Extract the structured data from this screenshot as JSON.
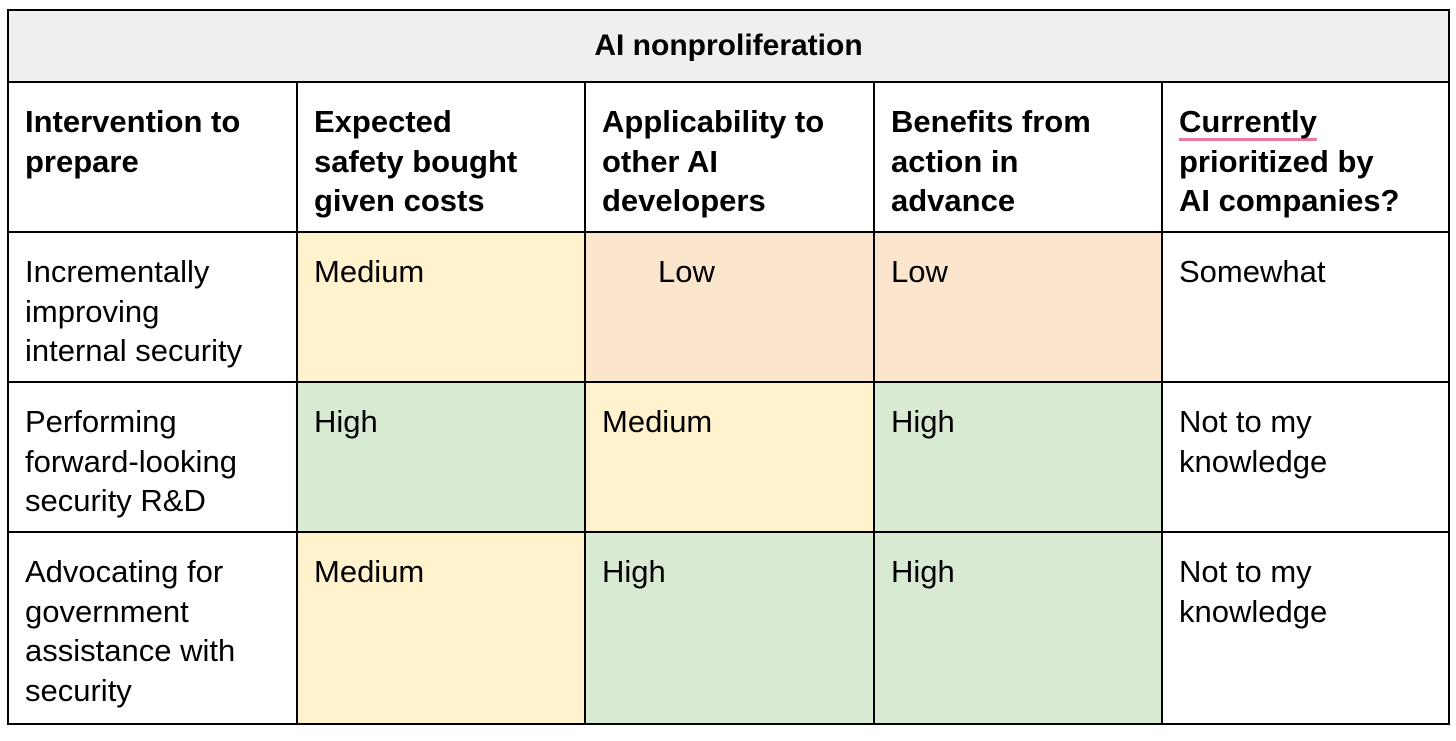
{
  "title": "AI nonproliferation",
  "columns": [
    {
      "lines": [
        "Intervention to",
        "prepare"
      ]
    },
    {
      "lines": [
        "Expected",
        "safety bought",
        "given costs"
      ]
    },
    {
      "lines": [
        "Applicability to",
        "other AI",
        "developers"
      ]
    },
    {
      "lines": [
        "Benefits from",
        "action in",
        "advance"
      ]
    },
    {
      "lines": [
        "Currently",
        "prioritized by",
        "AI companies?"
      ]
    }
  ],
  "rows": [
    {
      "intervention": [
        "Incrementally",
        "improving",
        "internal security"
      ],
      "safety": "Medium",
      "applicability": "Low",
      "benefits": "Low",
      "prioritized": [
        "Somewhat"
      ]
    },
    {
      "intervention": [
        "Performing",
        "forward-looking",
        "security R&D"
      ],
      "safety": "High",
      "applicability": "Medium",
      "benefits": "High",
      "prioritized": [
        "Not to my",
        "knowledge"
      ]
    },
    {
      "intervention": [
        "Advocating for",
        "government",
        "assistance with",
        "security"
      ],
      "safety": "Medium",
      "applicability": "High",
      "benefits": "High",
      "prioritized": [
        "Not to my",
        "knowledge"
      ]
    }
  ],
  "colors": {
    "High": "#d9ead3",
    "Medium": "#fff2cc",
    "Low": "#fce5cd",
    "title_bg": "#efefef",
    "spellcheck_underline": "#e8789c"
  }
}
